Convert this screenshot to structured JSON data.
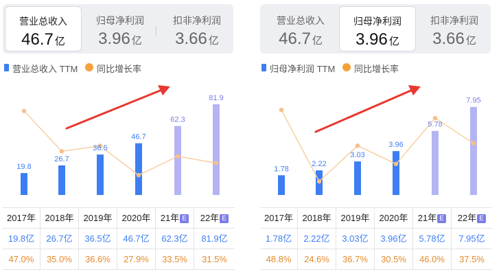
{
  "colors": {
    "bar_actual": "#3d7ef2",
    "bar_estimate": "#b4b4f3",
    "line": "#f8cfa2",
    "dot": "#f6bf8a",
    "arrow": "#e8382f",
    "value_actual": "#3d7ef2",
    "value_estimate": "#7b7ce8",
    "growth_text": "#e48a2c",
    "tab_bg": "#eeeff3"
  },
  "panels": [
    {
      "tabs": [
        {
          "label": "营业总收入",
          "value": "46.7",
          "unit": "亿",
          "active": true
        },
        {
          "label": "归母净利润",
          "value": "3.96",
          "unit": "亿",
          "active": false
        },
        {
          "label": "扣非净利润",
          "value": "3.66",
          "unit": "亿",
          "active": false
        }
      ],
      "legend": {
        "bar": "营业总收入 TTM",
        "line": "同比增长率"
      },
      "table": {
        "years": [
          "2017年",
          "2018年",
          "2019年",
          "2020年",
          "21年",
          "22年"
        ],
        "estimate_badge": "E",
        "values": [
          "19.8亿",
          "26.7亿",
          "36.5亿",
          "46.7亿",
          "62.3亿",
          "81.9亿"
        ],
        "growth": [
          "47.0%",
          "35.0%",
          "36.6%",
          "27.9%",
          "33.5%",
          "31.5%"
        ]
      }
    },
    {
      "tabs": [
        {
          "label": "营业总收入",
          "value": "46.7",
          "unit": "亿",
          "active": false
        },
        {
          "label": "归母净利润",
          "value": "3.96",
          "unit": "亿",
          "active": true
        },
        {
          "label": "扣非净利润",
          "value": "3.66",
          "unit": "亿",
          "active": false
        }
      ],
      "legend": {
        "bar": "归母净利润 TTM",
        "line": "同比增长率"
      },
      "table": {
        "years": [
          "2017年",
          "2018年",
          "2019年",
          "2020年",
          "21年",
          "22年"
        ],
        "estimate_badge": "E",
        "values": [
          "1.78亿",
          "2.22亿",
          "3.03亿",
          "3.96亿",
          "5.78亿",
          "7.95亿"
        ],
        "growth": [
          "48.8%",
          "24.6%",
          "36.7%",
          "30.5%",
          "46.0%",
          "37.5%"
        ]
      }
    }
  ],
  "chart_data": [
    {
      "type": "bar",
      "categories": [
        "2017",
        "2018",
        "2019",
        "2020",
        "21",
        "22"
      ],
      "estimated": [
        false,
        false,
        false,
        false,
        true,
        true
      ],
      "series": [
        {
          "name": "营业总收入 TTM",
          "kind": "bar",
          "unit": "亿",
          "values": [
            19.8,
            26.7,
            36.5,
            46.7,
            62.3,
            81.9
          ],
          "labels": [
            "19.8",
            "26.7",
            "36.5",
            "46.7",
            "62.3",
            "81.9"
          ]
        },
        {
          "name": "同比增长率",
          "kind": "line",
          "unit": "%",
          "values": [
            47.0,
            35.0,
            36.6,
            27.9,
            33.5,
            31.5
          ]
        }
      ],
      "ylim_bar": [
        0,
        88
      ],
      "ylim_line": [
        22,
        51
      ],
      "grid": false,
      "legend": "top-left"
    },
    {
      "type": "bar",
      "categories": [
        "2017",
        "2018",
        "2019",
        "2020",
        "21",
        "22"
      ],
      "estimated": [
        false,
        false,
        false,
        false,
        true,
        true
      ],
      "series": [
        {
          "name": "归母净利润 TTM",
          "kind": "bar",
          "unit": "亿",
          "values": [
            1.78,
            2.22,
            3.03,
            3.96,
            5.78,
            7.95
          ],
          "labels": [
            "1.78",
            "2.22",
            "3.03",
            "3.96",
            "5.78",
            "7.95"
          ]
        },
        {
          "name": "同比增长率",
          "kind": "line",
          "unit": "%",
          "values": [
            48.8,
            24.6,
            36.7,
            30.5,
            46.0,
            37.5
          ]
        }
      ],
      "ylim_bar": [
        0,
        8.8
      ],
      "ylim_line": [
        20,
        53
      ],
      "grid": false,
      "legend": "top-left"
    }
  ]
}
